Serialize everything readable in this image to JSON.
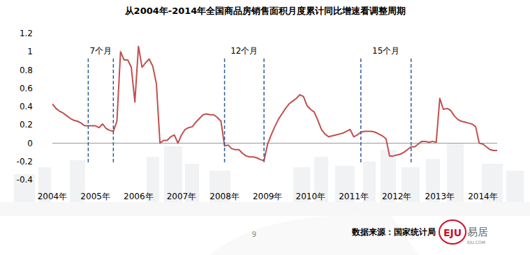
{
  "chart_data": {
    "type": "line",
    "title": "从2004年-2014年全国商品房销售面积月度累计同比增速看调整周期",
    "categories": [
      "2004年",
      null,
      null,
      null,
      null,
      null,
      null,
      null,
      null,
      null,
      null,
      null,
      "2005年",
      null,
      null,
      null,
      null,
      null,
      null,
      null,
      null,
      null,
      null,
      null,
      "2006年",
      null,
      null,
      null,
      null,
      null,
      null,
      null,
      null,
      null,
      null,
      null,
      "2007年",
      null,
      null,
      null,
      null,
      null,
      null,
      null,
      null,
      null,
      null,
      null,
      "2008年",
      null,
      null,
      null,
      null,
      null,
      null,
      null,
      null,
      null,
      null,
      null,
      "2009年",
      null,
      null,
      null,
      null,
      null,
      null,
      null,
      null,
      null,
      null,
      null,
      "2010年",
      null,
      null,
      null,
      null,
      null,
      null,
      null,
      null,
      null,
      null,
      null,
      "2011年",
      null,
      null,
      null,
      null,
      null,
      null,
      null,
      null,
      null,
      null,
      null,
      "2012年",
      null,
      null,
      null,
      null,
      null,
      null,
      null,
      null,
      null,
      null,
      null,
      "2013年",
      null,
      null,
      null,
      null,
      null,
      null,
      null,
      null,
      null,
      null,
      null,
      "2014年",
      null,
      null,
      null,
      null
    ],
    "values": [
      0.43,
      0.38,
      0.35,
      0.33,
      0.3,
      0.27,
      0.25,
      0.24,
      0.22,
      0.19,
      0.19,
      0.19,
      0.19,
      0.17,
      0.21,
      0.16,
      0.14,
      0.13,
      0.24,
      1.0,
      0.91,
      0.91,
      0.83,
      0.45,
      1.06,
      0.83,
      0.88,
      0.92,
      0.84,
      0.65,
      0.0,
      0.03,
      0.03,
      0.07,
      0.09,
      0.0,
      0.09,
      0.15,
      0.17,
      0.18,
      0.23,
      0.27,
      0.31,
      0.32,
      0.31,
      0.31,
      0.28,
      0.24,
      -0.03,
      -0.02,
      -0.06,
      -0.07,
      -0.07,
      -0.11,
      -0.14,
      -0.15,
      -0.15,
      -0.16,
      -0.18,
      -0.19,
      -0.01,
      0.09,
      0.18,
      0.26,
      0.32,
      0.38,
      0.43,
      0.46,
      0.49,
      0.53,
      0.51,
      0.41,
      0.37,
      0.34,
      0.25,
      0.15,
      0.1,
      0.07,
      0.08,
      0.09,
      0.1,
      0.11,
      0.13,
      0.15,
      0.07,
      0.09,
      0.12,
      0.13,
      0.13,
      0.13,
      0.12,
      0.1,
      0.08,
      0.05,
      -0.14,
      -0.14,
      -0.13,
      -0.12,
      -0.1,
      -0.07,
      -0.04,
      -0.04,
      -0.01,
      0.02,
      0.02,
      0.01,
      0.02,
      0.01,
      0.49,
      0.37,
      0.38,
      0.36,
      0.3,
      0.26,
      0.24,
      0.23,
      0.22,
      0.21,
      0.18,
      0.0,
      -0.01,
      -0.04,
      -0.07,
      -0.08,
      -0.08
    ],
    "color": "#c0504d",
    "xlim": [
      0,
      124
    ],
    "ylim": [
      -0.4,
      1.2
    ],
    "yticks": [
      1.2,
      1,
      0.8,
      0.6,
      0.4,
      0.2,
      0,
      -0.2,
      -0.4
    ],
    "grid": false,
    "annotations": [
      {
        "text": "7个月",
        "x_start": 10,
        "x_end": 17
      },
      {
        "text": "12个月",
        "x_start": 48,
        "x_end": 59
      },
      {
        "text": "15个月",
        "x_start": 86,
        "x_end": 100
      }
    ],
    "source": "数据来源：国家统计局",
    "page": "9",
    "logo_mark": "EJU",
    "logo_name": "易居",
    "logo_url": "EJU.COM"
  }
}
